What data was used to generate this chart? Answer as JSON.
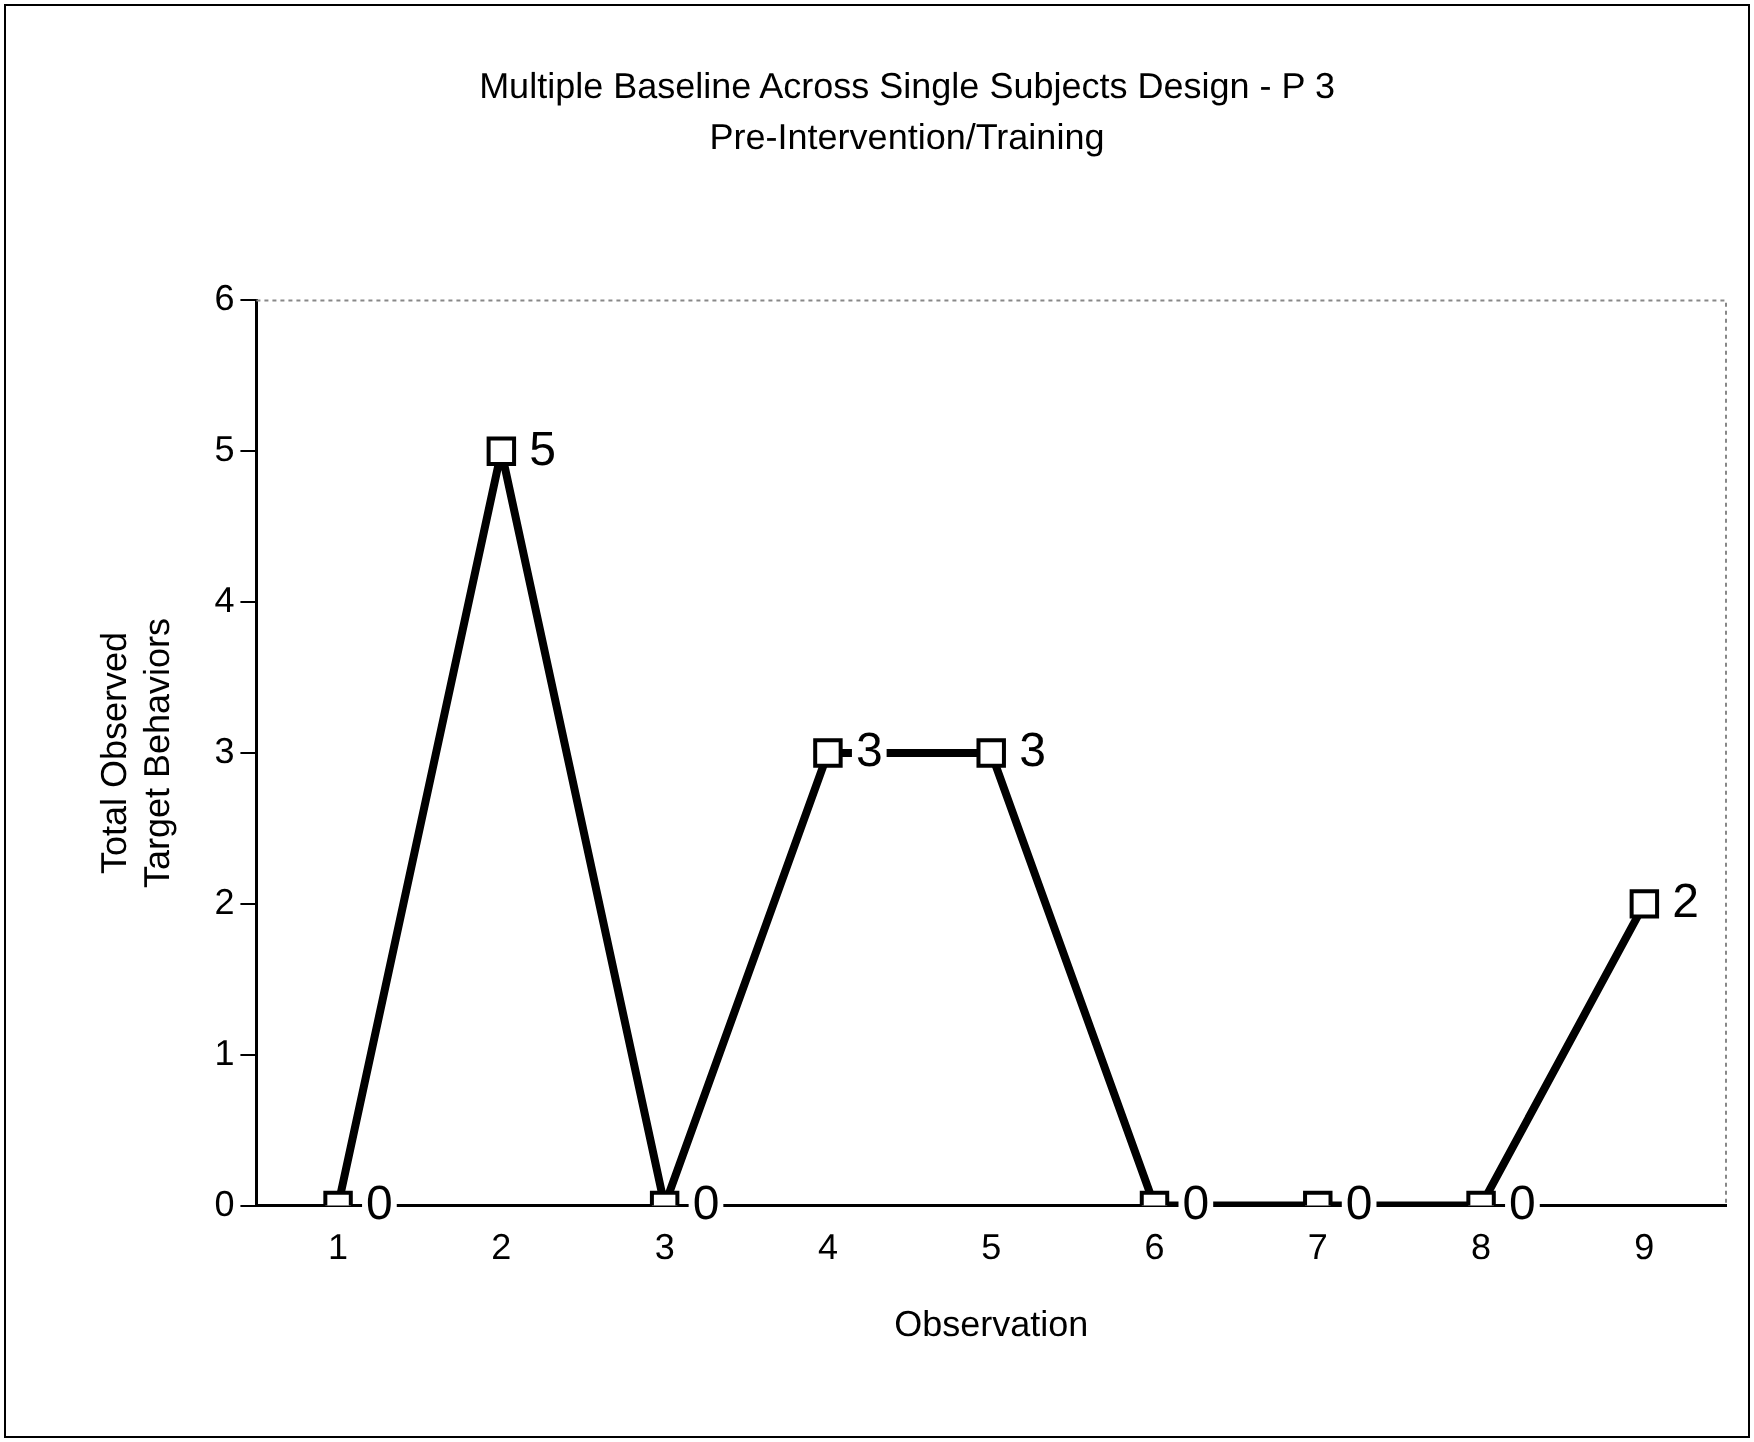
{
  "chart_data": {
    "type": "line",
    "title": "Multiple Baseline Across Single Subjects Design - P 3",
    "subtitle": "Pre-Intervention/Training",
    "xlabel": "Observation",
    "ylabel": "Total Observed Target Behaviors",
    "categories": [
      "1",
      "2",
      "3",
      "4",
      "5",
      "6",
      "7",
      "8",
      "9"
    ],
    "series": [
      {
        "color": "#000000",
        "values": [
          0,
          5,
          0,
          3,
          3,
          0,
          0,
          0,
          2
        ]
      }
    ],
    "ylim": [
      0,
      6
    ],
    "yticks": [
      0,
      1,
      2,
      3,
      4,
      5,
      6
    ],
    "grid": false,
    "legend": false,
    "marker": "square",
    "line_style": "solid",
    "data_labels": true
  }
}
